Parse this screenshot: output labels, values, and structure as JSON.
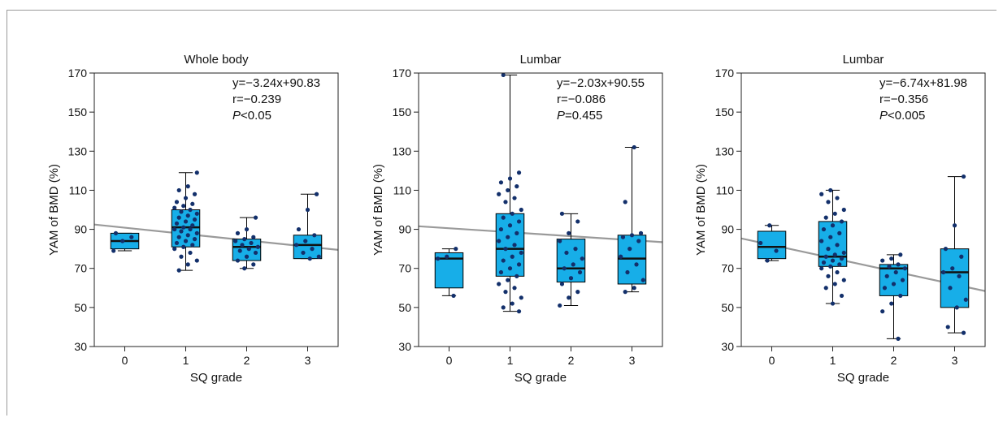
{
  "chart_data": [
    {
      "type": "box",
      "title": "Whole body",
      "xlabel": "SQ grade",
      "ylabel": "YAM of BMD (%)",
      "categories": [
        "0",
        "1",
        "2",
        "3"
      ],
      "ylim": [
        30,
        170
      ],
      "yticks": [
        30,
        50,
        70,
        90,
        110,
        130,
        150,
        170
      ],
      "boxes": [
        {
          "min": 79,
          "q1": 80,
          "median": 84,
          "q3": 88,
          "max": 88
        },
        {
          "min": 69,
          "q1": 81,
          "median": 91,
          "q3": 100,
          "max": 119
        },
        {
          "min": 70,
          "q1": 74,
          "median": 81,
          "q3": 85,
          "max": 96
        },
        {
          "min": 75,
          "q1": 75,
          "median": 82,
          "q3": 87,
          "max": 108
        }
      ],
      "points": [
        [
          79,
          84,
          86,
          88
        ],
        [
          69,
          72,
          74,
          76,
          78,
          80,
          81,
          82,
          83,
          84,
          85,
          86,
          87,
          88,
          89,
          90,
          90,
          91,
          92,
          93,
          94,
          95,
          96,
          97,
          98,
          99,
          100,
          101,
          102,
          103,
          104,
          106,
          108,
          110,
          112,
          119
        ],
        [
          70,
          72,
          74,
          76,
          78,
          79,
          80,
          81,
          82,
          83,
          84,
          85,
          86,
          88,
          90,
          96
        ],
        [
          75,
          76,
          78,
          80,
          82,
          84,
          87,
          90,
          100,
          108
        ]
      ],
      "regression": {
        "slope": -3.24,
        "intercept": 90.83
      },
      "annotations": [
        "y=−3.24x+90.83",
        "r=−0.239"
      ],
      "p_label": "P",
      "p_value": "<0.05"
    },
    {
      "type": "box",
      "title": "Lumbar",
      "xlabel": "SQ grade",
      "ylabel": "YAM of BMD (%)",
      "categories": [
        "0",
        "1",
        "2",
        "3"
      ],
      "ylim": [
        30,
        170
      ],
      "yticks": [
        30,
        50,
        70,
        90,
        110,
        130,
        150,
        170
      ],
      "boxes": [
        {
          "min": 56,
          "q1": 60,
          "median": 75,
          "q3": 78,
          "max": 80
        },
        {
          "min": 48,
          "q1": 66,
          "median": 80,
          "q3": 98,
          "max": 169
        },
        {
          "min": 51,
          "q1": 63,
          "median": 70,
          "q3": 85,
          "max": 98
        },
        {
          "min": 58,
          "q1": 62,
          "median": 75,
          "q3": 87,
          "max": 132
        }
      ],
      "points": [
        [
          56,
          75,
          76,
          80
        ],
        [
          48,
          50,
          52,
          55,
          58,
          60,
          62,
          64,
          66,
          68,
          70,
          72,
          74,
          76,
          78,
          80,
          82,
          84,
          86,
          88,
          90,
          92,
          94,
          96,
          98,
          100,
          104,
          106,
          108,
          110,
          112,
          114,
          116,
          119,
          169
        ],
        [
          51,
          55,
          58,
          62,
          65,
          68,
          70,
          72,
          75,
          78,
          80,
          84,
          88,
          94,
          98
        ],
        [
          58,
          60,
          64,
          68,
          72,
          76,
          80,
          84,
          86,
          87,
          88,
          104,
          132
        ]
      ],
      "regression": {
        "slope": -2.03,
        "intercept": 90.55
      },
      "annotations": [
        "y=−2.03x+90.55",
        "r=−0.086"
      ],
      "p_label": "P",
      "p_value": "=0.455"
    },
    {
      "type": "box",
      "title": "Lumbar",
      "xlabel": "SQ grade",
      "ylabel": "YAM of BMD (%)",
      "categories": [
        "0",
        "1",
        "2",
        "3"
      ],
      "ylim": [
        30,
        170
      ],
      "yticks": [
        30,
        50,
        70,
        90,
        110,
        130,
        150,
        170
      ],
      "boxes": [
        {
          "min": 74,
          "q1": 75,
          "median": 81,
          "q3": 89,
          "max": 92
        },
        {
          "min": 52,
          "q1": 71,
          "median": 76,
          "q3": 94,
          "max": 110
        },
        {
          "min": 34,
          "q1": 56,
          "median": 70,
          "q3": 72,
          "max": 77
        },
        {
          "min": 37,
          "q1": 50,
          "median": 68,
          "q3": 80,
          "max": 117
        }
      ],
      "points": [
        [
          74,
          79,
          83,
          92
        ],
        [
          52,
          56,
          60,
          62,
          64,
          66,
          68,
          70,
          71,
          72,
          73,
          74,
          75,
          76,
          77,
          78,
          80,
          82,
          84,
          86,
          88,
          90,
          92,
          94,
          96,
          98,
          100,
          104,
          106,
          108,
          110
        ],
        [
          34,
          48,
          52,
          56,
          60,
          62,
          64,
          66,
          68,
          70,
          71,
          72,
          74,
          75,
          77
        ],
        [
          37,
          40,
          50,
          54,
          60,
          66,
          68,
          70,
          76,
          80,
          92,
          117
        ]
      ],
      "regression": {
        "slope": -6.74,
        "intercept": 81.98
      },
      "annotations": [
        "y=−6.74x+81.98",
        "r=−0.356"
      ],
      "p_label": "P",
      "p_value": "<0.005"
    }
  ],
  "colors": {
    "box_fill": "#17aee8",
    "point": "#13306b",
    "regression_line": "#9a9a9a",
    "axis": "#222222"
  }
}
